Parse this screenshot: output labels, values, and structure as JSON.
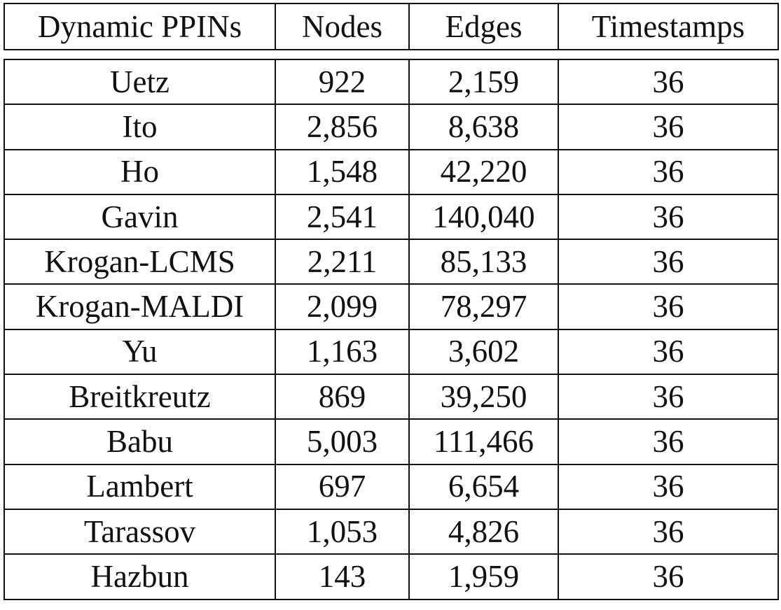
{
  "table": {
    "headers": [
      "Dynamic PPINs",
      "Nodes",
      "Edges",
      "Timestamps"
    ],
    "rows": [
      [
        "Uetz",
        "922",
        "2,159",
        "36"
      ],
      [
        "Ito",
        "2,856",
        "8,638",
        "36"
      ],
      [
        "Ho",
        "1,548",
        "42,220",
        "36"
      ],
      [
        "Gavin",
        "2,541",
        "140,040",
        "36"
      ],
      [
        "Krogan-LCMS",
        "2,211",
        "85,133",
        "36"
      ],
      [
        "Krogan-MALDI",
        "2,099",
        "78,297",
        "36"
      ],
      [
        "Yu",
        "1,163",
        "3,602",
        "36"
      ],
      [
        "Breitkreutz",
        "869",
        "39,250",
        "36"
      ],
      [
        "Babu",
        "5,003",
        "111,466",
        "36"
      ],
      [
        "Lambert",
        "697",
        "6,654",
        "36"
      ],
      [
        "Tarassov",
        "1,053",
        "4,826",
        "36"
      ],
      [
        "Hazbun",
        "143",
        "1,959",
        "36"
      ]
    ]
  }
}
